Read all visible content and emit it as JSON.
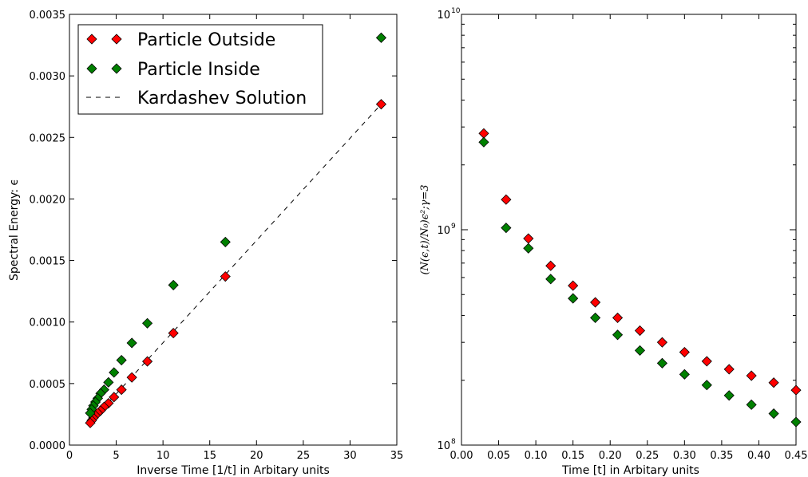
{
  "chart_data": [
    {
      "type": "scatter",
      "xlabel": "Inverse Time [1/t] in Arbitary units",
      "ylabel": "Spectral Energy: ϵ",
      "xlim": [
        0,
        35
      ],
      "ylim": [
        0,
        0.0035
      ],
      "xticks": [
        "0",
        "5",
        "10",
        "15",
        "20",
        "25",
        "30",
        "35"
      ],
      "yticks": [
        "0.0000",
        "0.0005",
        "0.0010",
        "0.0015",
        "0.0020",
        "0.0025",
        "0.0030",
        "0.0035"
      ],
      "legend_position": "top-left",
      "series": [
        {
          "name": "Particle Outside",
          "marker": "diamond",
          "color": "#ff0000",
          "x": [
            33.33,
            16.67,
            11.11,
            8.33,
            6.67,
            5.56,
            4.76,
            4.17,
            3.7,
            3.33,
            3.03,
            2.78,
            2.56,
            2.38,
            2.22
          ],
          "y": [
            0.00277,
            0.00137,
            0.00091,
            0.00068,
            0.00055,
            0.00045,
            0.00039,
            0.00034,
            0.00031,
            0.00028,
            0.00026,
            0.00024,
            0.00022,
            0.0002,
            0.00018
          ]
        },
        {
          "name": "Particle Inside",
          "marker": "diamond",
          "color": "#008000",
          "x": [
            33.33,
            16.67,
            11.11,
            8.33,
            6.67,
            5.56,
            4.76,
            4.17,
            3.7,
            3.33,
            3.03,
            2.78,
            2.56,
            2.38,
            2.22
          ],
          "y": [
            0.00331,
            0.00165,
            0.0013,
            0.00099,
            0.00083,
            0.00069,
            0.00059,
            0.00051,
            0.00045,
            0.00042,
            0.00038,
            0.00035,
            0.00032,
            0.00029,
            0.00026
          ]
        },
        {
          "name": "Kardashev Solution",
          "type": "line",
          "style": "dashed",
          "color": "#000000",
          "x": [
            2.22,
            33.33
          ],
          "y": [
            0.000185,
            0.00277
          ]
        }
      ]
    },
    {
      "type": "scatter",
      "xlabel": "Time [t] in Arbitary units",
      "ylabel": "(N(ϵ,t)/N₀)ϵ²;γ=3",
      "xlim": [
        0,
        0.45
      ],
      "ylim": [
        100000000,
        10000000000
      ],
      "yscale": "log",
      "xticks": [
        "0.00",
        "0.05",
        "0.10",
        "0.15",
        "0.20",
        "0.25",
        "0.30",
        "0.35",
        "0.40",
        "0.45"
      ],
      "yticks": [
        "10",
        "10",
        "10"
      ],
      "ytick_exponents": [
        "8",
        "9",
        "10"
      ],
      "series": [
        {
          "name": "Particle Outside",
          "marker": "diamond",
          "color": "#ff0000",
          "x": [
            0.03,
            0.06,
            0.09,
            0.12,
            0.15,
            0.18,
            0.21,
            0.24,
            0.27,
            0.3,
            0.33,
            0.36,
            0.39,
            0.42,
            0.45
          ],
          "y": [
            2800000000,
            1380000000,
            910000000,
            680000000,
            550000000,
            460000000,
            390000000,
            340000000,
            300000000,
            270000000,
            245000000,
            225000000,
            210000000,
            195000000,
            180000000
          ]
        },
        {
          "name": "Particle Inside",
          "marker": "diamond",
          "color": "#008000",
          "x": [
            0.03,
            0.06,
            0.09,
            0.12,
            0.15,
            0.18,
            0.21,
            0.24,
            0.27,
            0.3,
            0.33,
            0.36,
            0.39,
            0.42,
            0.45
          ],
          "y": [
            2550000000,
            1020000000,
            820000000,
            590000000,
            480000000,
            390000000,
            325000000,
            275000000,
            240000000,
            213000000,
            190000000,
            170000000,
            154000000,
            140000000,
            128000000
          ]
        }
      ]
    }
  ]
}
